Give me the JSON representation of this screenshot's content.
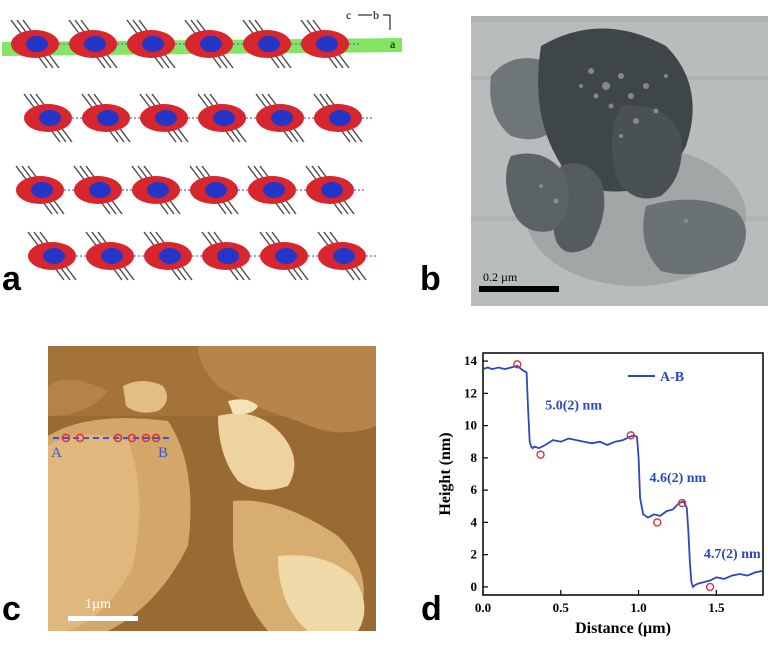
{
  "figure": {
    "panels": {
      "a": {
        "letter": "a",
        "axes": {
          "c": "c",
          "b": "b",
          "a": "a"
        }
      },
      "b": {
        "letter": "b",
        "scalebar": "0.2 µm"
      },
      "c": {
        "letter": "c",
        "scalebar": "1µm",
        "point_a": "A",
        "point_b": "B"
      },
      "d": {
        "letter": "d"
      }
    }
  },
  "chart_data": {
    "type": "line",
    "xlabel": "Distance (µm)",
    "ylabel": "Height (nm)",
    "xlim": [
      0,
      1.8
    ],
    "ylim": [
      -0.5,
      14.5
    ],
    "xticks": [
      0.0,
      0.5,
      1.0,
      1.5
    ],
    "xtick_labels": [
      "0.0",
      "0.5",
      "1.0",
      "1.5"
    ],
    "yticks": [
      0,
      2,
      4,
      6,
      8,
      10,
      12,
      14
    ],
    "ytick_labels": [
      "0",
      "2",
      "4",
      "6",
      "8",
      "10",
      "12",
      "14"
    ],
    "legend": "top-right",
    "grid": false,
    "series": [
      {
        "name": "A-B",
        "color": "#2a47c6",
        "x": [
          0.0,
          0.03,
          0.06,
          0.1,
          0.14,
          0.18,
          0.22,
          0.26,
          0.28,
          0.29,
          0.3,
          0.31,
          0.32,
          0.33,
          0.36,
          0.4,
          0.45,
          0.5,
          0.55,
          0.6,
          0.65,
          0.7,
          0.75,
          0.8,
          0.85,
          0.9,
          0.94,
          0.97,
          0.99,
          1.0,
          1.01,
          1.03,
          1.06,
          1.1,
          1.14,
          1.18,
          1.22,
          1.26,
          1.29,
          1.31,
          1.32,
          1.33,
          1.34,
          1.35,
          1.36,
          1.38,
          1.42,
          1.46,
          1.5,
          1.55,
          1.6,
          1.65,
          1.7,
          1.75,
          1.8
        ],
        "y": [
          13.5,
          13.6,
          13.5,
          13.6,
          13.5,
          13.6,
          13.7,
          13.4,
          13.3,
          11.0,
          9.0,
          8.7,
          8.6,
          8.7,
          8.6,
          8.8,
          9.1,
          9.0,
          9.2,
          9.1,
          9.0,
          8.9,
          9.0,
          8.8,
          9.0,
          9.1,
          9.3,
          9.4,
          9.3,
          8.0,
          5.5,
          4.5,
          4.3,
          4.5,
          4.4,
          4.7,
          4.8,
          5.2,
          5.3,
          4.9,
          3.5,
          1.5,
          0.3,
          0.0,
          0.1,
          0.2,
          0.3,
          0.4,
          0.6,
          0.5,
          0.7,
          0.8,
          0.7,
          0.9,
          1.0
        ]
      }
    ],
    "markers": {
      "x": [
        0.22,
        0.37,
        0.95,
        1.12,
        1.28,
        1.46
      ],
      "y": [
        13.8,
        8.2,
        9.4,
        4.0,
        5.2,
        0.0
      ]
    },
    "annotations": [
      {
        "text": "5.0(2) nm",
        "x": 0.4,
        "y": 11.0
      },
      {
        "text": "4.6(2) nm",
        "x": 1.07,
        "y": 6.5
      },
      {
        "text": "4.7(2) nm",
        "x": 1.42,
        "y": 1.8
      }
    ]
  }
}
